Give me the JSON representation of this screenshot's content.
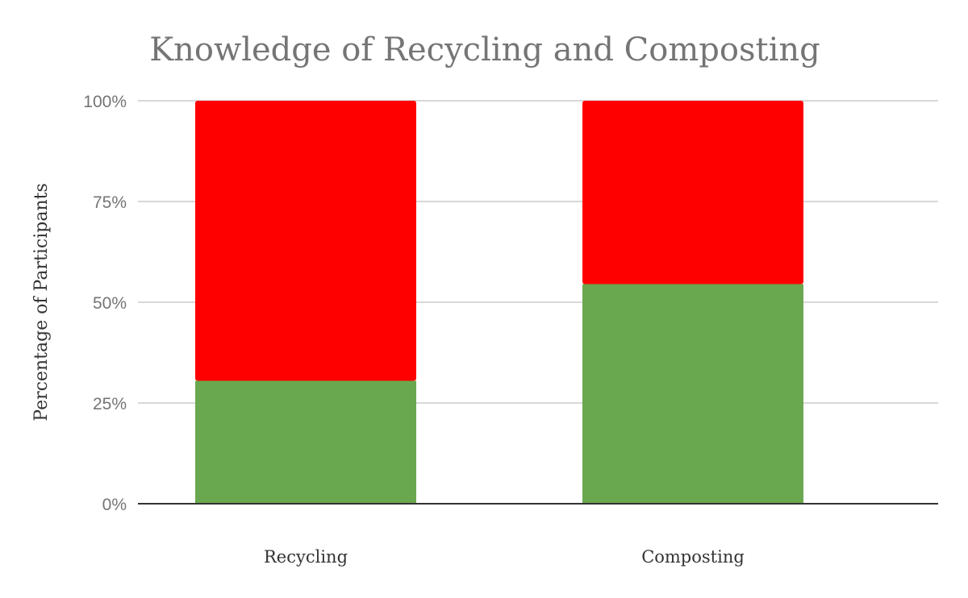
{
  "chart_data": {
    "type": "bar",
    "stacked": true,
    "normalized": true,
    "title": "Knowledge of Recycling and Composting",
    "xlabel": "",
    "ylabel": "Percentage of Participants",
    "categories": [
      "Recycling",
      "Composting"
    ],
    "ylim": [
      0,
      100
    ],
    "yticks": [
      "0%",
      "25%",
      "50%",
      "75%",
      "100%"
    ],
    "ytick_values": [
      0,
      25,
      50,
      75,
      100
    ],
    "grid": true,
    "legend": "none",
    "series": [
      {
        "color": "#6aa84f",
        "values": [
          30.5,
          54.5
        ]
      },
      {
        "color": "#ff0000",
        "values": [
          69.5,
          45.5
        ]
      }
    ]
  }
}
